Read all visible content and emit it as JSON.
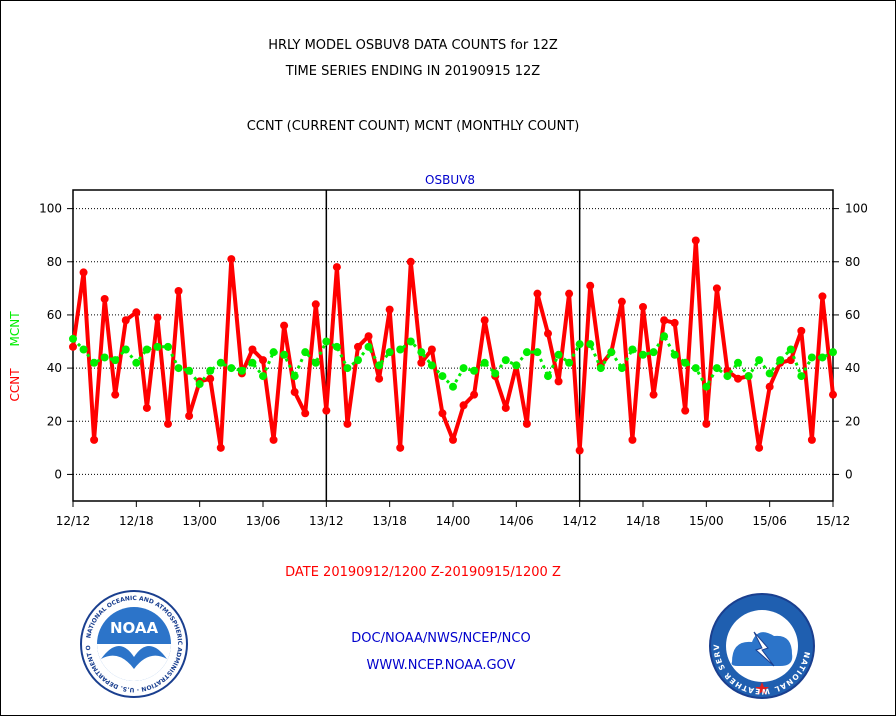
{
  "titles": {
    "line1": "HRLY MODEL OSBUV8 DATA COUNTS for 12Z",
    "line2": "TIME SERIES ENDING IN 20190915 12Z",
    "line3": "CCNT (CURRENT COUNT) MCNT (MONTHLY COUNT)"
  },
  "footer": {
    "date_range": "DATE 20190912/1200 Z-20190915/1200 Z",
    "org": "DOC/NOAA/NWS/NCEP/NCO",
    "url": "WWW.NCEP.NOAA.GOV"
  },
  "logos": {
    "noaa": "NOAA",
    "noaa_ring": "NATIONAL OCEANIC AND ATMOSPHERIC ADMINISTRATION · U.S. DEPARTMENT OF COMMERCE",
    "nws_ring": "NATIONAL WEATHER SERVICE"
  },
  "colors": {
    "ccnt": "#ff0000",
    "mcnt": "#00ee00",
    "blue_text": "#0000cc"
  },
  "chart_data": {
    "type": "line",
    "title": "OSBUV8",
    "xlabel": "",
    "ylabel_ccnt": "CCNT",
    "ylabel_mcnt": "MCNT",
    "ylim": [
      -10,
      107
    ],
    "yticks": [
      0,
      20,
      40,
      60,
      80,
      100
    ],
    "xticks": [
      "12/12",
      "12/18",
      "13/00",
      "13/06",
      "13/12",
      "13/18",
      "14/00",
      "14/06",
      "14/12",
      "14/18",
      "15/00",
      "15/06",
      "15/12"
    ],
    "x_hours_start": 0,
    "x_hours_end": 72,
    "day_dividers_hours": [
      24,
      48
    ],
    "grid": true,
    "series": [
      {
        "name": "CCNT",
        "values": [
          48,
          76,
          13,
          66,
          30,
          58,
          61,
          25,
          59,
          19,
          69,
          22,
          35,
          36,
          10,
          81,
          38,
          47,
          43,
          13,
          56,
          31,
          23,
          64,
          24,
          78,
          19,
          48,
          52,
          36,
          62,
          10,
          80,
          42,
          47,
          23,
          13,
          26,
          30,
          58,
          37,
          25,
          41,
          19,
          68,
          53,
          35,
          68,
          9,
          71,
          41,
          46,
          65,
          13,
          63,
          30,
          58,
          57,
          24,
          88,
          19,
          70,
          39,
          36,
          37,
          10,
          33,
          42,
          43,
          54,
          13,
          67,
          30
        ]
      },
      {
        "name": "MCNT",
        "values": [
          51,
          47,
          42,
          44,
          43,
          47,
          42,
          47,
          48,
          48,
          40,
          39,
          34,
          39,
          42,
          40,
          39,
          42,
          37,
          46,
          45,
          37,
          46,
          42,
          50,
          48,
          40,
          43,
          48,
          41,
          46,
          47,
          50,
          46,
          41,
          37,
          33,
          40,
          39,
          42,
          38,
          43,
          41,
          46,
          46,
          37,
          45,
          42,
          49,
          49,
          40,
          46,
          40,
          47,
          45,
          46,
          52,
          45,
          42,
          40,
          33,
          40,
          37,
          42,
          37,
          43,
          38,
          43,
          47,
          37,
          44,
          44,
          46
        ]
      }
    ]
  }
}
